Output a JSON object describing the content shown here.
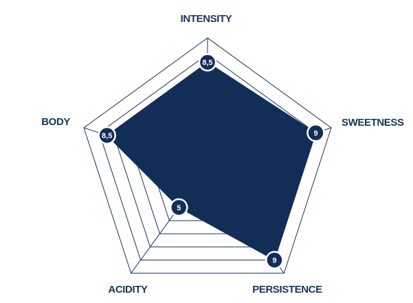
{
  "chart_data": {
    "type": "radar",
    "title": "",
    "axes": [
      {
        "label": "INTENSITY",
        "value": 8.5,
        "display": "8,5"
      },
      {
        "label": "SWEETNESS",
        "value": 9,
        "display": "9"
      },
      {
        "label": "PERSISTENCE",
        "value": 9,
        "display": "9"
      },
      {
        "label": "ACIDITY",
        "value": 5,
        "display": "5"
      },
      {
        "label": "BODY",
        "value": 8.5,
        "display": "8,5"
      }
    ],
    "scale": {
      "center_value": 2,
      "max": 10,
      "ring_step": 1,
      "rings": [
        3,
        4,
        5,
        6,
        7,
        8,
        9,
        10
      ],
      "grid_shape": "pentagon"
    },
    "legend": null,
    "colors": {
      "fill": "#122d56",
      "grid": "#16325c",
      "label": "#17355d",
      "value_text": "#ffffff",
      "marker_ring": "#ffffff",
      "background": "#ffffff"
    }
  }
}
